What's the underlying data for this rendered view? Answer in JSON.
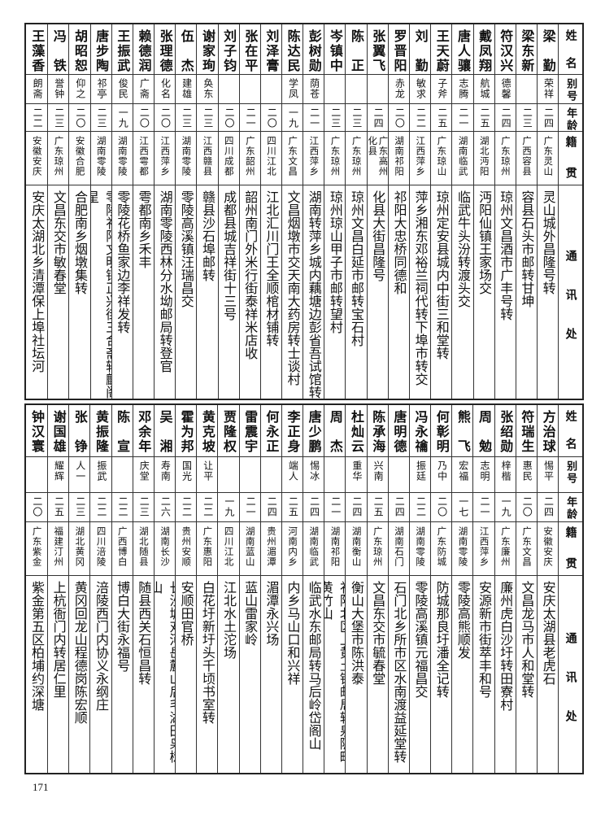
{
  "headers": {
    "name": "姓名",
    "alias": "别号",
    "age": "年龄",
    "origin": "籍贯",
    "address": "通讯处"
  },
  "top_table": [
    {
      "name": "梁勤",
      "alias": "荣祥",
      "age": "二四",
      "origin": "广东灵山",
      "address": "灵山城外昌隆号转"
    },
    {
      "name": "梁东新",
      "alias": "",
      "age": "二三",
      "origin": "广西容县",
      "address": "容县石头市邮转甘坤"
    },
    {
      "name": "符汉兴",
      "alias": "德馨",
      "age": "二四",
      "origin": "广东琼州",
      "address": "琼州文昌酒市广丰号转"
    },
    {
      "name": "戴凤翔",
      "alias": "航城",
      "age": "二五",
      "origin": "湖北沔阳",
      "address": "沔阳仙镇王家场交"
    },
    {
      "name": "唐人骧",
      "alias": "志腾",
      "age": "二一",
      "origin": "湖南临武",
      "address": "临武牛头汾转渡头交"
    },
    {
      "name": "王天蔚",
      "alias": "子斧",
      "age": "二五",
      "origin": "广东琼山",
      "address": "琼州定安县城内中街三和堂转"
    },
    {
      "name": "刘勤",
      "alias": "敏求",
      "age": "二二",
      "origin": "江西萍乡",
      "address": "萍乡湘东邓裕兰祠代转下埠市转交"
    },
    {
      "name": "罗晋阳",
      "alias": "赤龙",
      "age": "二〇",
      "origin": "湖南祁阳",
      "address": "祁阳大忠桥同德和"
    },
    {
      "name": "张翼飞",
      "alias": "",
      "age": "二四",
      "origin": "广东高州化县",
      "address": "化县大街昌隆号"
    },
    {
      "name": "陈正",
      "alias": "",
      "age": "二三",
      "origin": "广东琼州",
      "address": "琼州文昌白延市邮转宝石村"
    },
    {
      "name": "岑镇中",
      "alias": "",
      "age": "二三",
      "origin": "广东琼州",
      "address": "琼州琼山甲子市邮转望村"
    },
    {
      "name": "彭树勋",
      "alias": "荫苍",
      "age": "二一",
      "origin": "江西萍乡",
      "address": "湖南转萍乡城内藕塘边彭省吾试馆转"
    },
    {
      "name": "陈达民",
      "alias": "学凤",
      "age": "一九",
      "origin": "广东文昌",
      "address": "文昌烟墩市交天南大药房转士谈村"
    },
    {
      "name": "刘泽膏",
      "alias": "",
      "age": "二〇",
      "origin": "四川江北",
      "address": "江北汇川门王全顺棺材铺转"
    },
    {
      "name": "张在平",
      "alias": "",
      "age": "二一",
      "origin": "广东韶州",
      "address": "韶州南门外米行街泰祥米店收"
    },
    {
      "name": "刘子钧",
      "alias": "",
      "age": "二〇",
      "origin": "四川成都",
      "address": "成都县城吉祥街十三号"
    },
    {
      "name": "谢家珣",
      "alias": "奂东",
      "age": "二三",
      "origin": "江西赣县",
      "address": "赣县沙石埠邮转"
    },
    {
      "name": "伍杰",
      "alias": "建雄",
      "age": "二三",
      "origin": "湖南零陵",
      "address": "零陵高溪镇汪瑞昌交"
    },
    {
      "name": "张理德",
      "alias": "化名",
      "age": "二〇",
      "origin": "江西萍乡",
      "address": "湖南零陵西林分水坳邮局转登官"
    },
    {
      "name": "赖德润",
      "alias": "广斋",
      "age": "二〇",
      "origin": "江西雩都",
      "address": "雩都南乡禾丰"
    },
    {
      "name": "王振武",
      "alias": "俊民",
      "age": "一九",
      "origin": "湖南零陵",
      "address": "零陵花桥鱼家边李祥发转"
    },
    {
      "name": "唐步陶",
      "alias": "祁亭",
      "age": "二三",
      "origin": "湖南零陵",
      "address": "零陵祁阳文明铺正兴街三合斋转麟阁星"
    },
    {
      "name": "胡昭恕",
      "alias": "仰之",
      "age": "二〇",
      "origin": "安徽合肥",
      "address": "合肥南乡烟墩集转"
    },
    {
      "name": "冯铁",
      "alias": "誉钟",
      "age": "二三",
      "origin": "广东琼州",
      "address": "文昌东交市敏春堂"
    },
    {
      "name": "王藻香",
      "alias": "朗斋",
      "age": "二二",
      "origin": "安徽安庆",
      "address": "安庆太湖北乡清潭保上埠社坛河"
    }
  ],
  "bottom_table": [
    {
      "name": "方治球",
      "alias": "惕平",
      "age": "二四",
      "origin": "安徽安庆",
      "address": "安庆太湖县老虎石"
    },
    {
      "name": "符瑞生",
      "alias": "惠民",
      "age": "二〇",
      "origin": "广东文昌",
      "address": "文昌龙马市人和堂转"
    },
    {
      "name": "张绍勋",
      "alias": "梓楷",
      "age": "一九",
      "origin": "广东廉州",
      "address": "廉州虎白沙圩转田寮村"
    },
    {
      "name": "周勉",
      "alias": "志明",
      "age": "二一",
      "origin": "江西萍乡",
      "address": "安源新市街萃丰和号"
    },
    {
      "name": "熊飞",
      "alias": "宏福",
      "age": "一七",
      "origin": "湖南零陵",
      "address": "零陵高熊顺发"
    },
    {
      "name": "何彰明",
      "alias": "乃中",
      "age": "二〇",
      "origin": "广东防城",
      "address": "防城那良圩潘全记转"
    },
    {
      "name": "冯永禴",
      "alias": "振廷",
      "age": "二二",
      "origin": "湖南零陵",
      "address": "零陵高溪镇元福昌交"
    },
    {
      "name": "唐明德",
      "alias": "",
      "age": "二四",
      "origin": "湖南石门",
      "address": "石门北乡所市区水南渡益延堂转"
    },
    {
      "name": "陈承海",
      "alias": "兴南",
      "age": "二五",
      "origin": "广东琼州",
      "address": "文昌东交市毓春堂"
    },
    {
      "name": "杜灿云",
      "alias": "重华",
      "age": "二四",
      "origin": "湖南衡山",
      "address": "衡山大堡市陈洪泰"
    },
    {
      "name": "周杰",
      "alias": "",
      "age": "二一",
      "origin": "湖南祁阳",
      "address": "祁阳北区上黄土铺邮局转泉陂町黄竹山"
    },
    {
      "name": "唐少鹏",
      "alias": "惕冰",
      "age": "二四",
      "origin": "湖南临武",
      "address": "临武水东邮局转马后岭岱阁山"
    },
    {
      "name": "李正身",
      "alias": "端人",
      "age": "二五",
      "origin": "河南内乡",
      "address": "内乡马山口和兴祥"
    },
    {
      "name": "何永正",
      "alias": "",
      "age": "二四",
      "origin": "贵州湄潭",
      "address": "湄潭永兴场"
    },
    {
      "name": "雷震宇",
      "alias": "",
      "age": "二一",
      "origin": "湖南蓝山",
      "address": "蓝山雷家岭"
    },
    {
      "name": "贾隆权",
      "alias": "",
      "age": "一九",
      "origin": "四川江北",
      "address": "江北水土沱场"
    },
    {
      "name": "黄克坡",
      "alias": "让平",
      "age": "二二",
      "origin": "广东惠阳",
      "address": "白花圩新圩头千顷书室转"
    },
    {
      "name": "霍为邦",
      "alias": "国光",
      "age": "二二",
      "origin": "贵州安顺",
      "address": "安顺田官桥"
    },
    {
      "name": "吴湘",
      "alias": "寿南",
      "age": "二六",
      "origin": "湖南长沙",
      "address": "长沙城对河岳麓山后毛湖田枭树山"
    },
    {
      "name": "邓余年",
      "alias": "庆堂",
      "age": "二三",
      "origin": "湖北随县",
      "address": "随县西关石恒昌转"
    },
    {
      "name": "陈宣",
      "alias": "",
      "age": "二二",
      "origin": "广西博白",
      "address": "博白大街永福号"
    },
    {
      "name": "黄振隆",
      "alias": "振武",
      "age": "二二",
      "origin": "四川涪陵",
      "address": "涪陵西门内协义永纲庄"
    },
    {
      "name": "张铮",
      "alias": "人一",
      "age": "二三",
      "origin": "湖北黄冈",
      "address": "黄冈回龙山程德岗陈宏顺"
    },
    {
      "name": "谢国雄",
      "alias": "耀辉",
      "age": "二五",
      "origin": "福建汀州",
      "address": "上杭衙门内转居仁里"
    },
    {
      "name": "钟汉寰",
      "alias": "",
      "age": "二〇",
      "origin": "广东紫金",
      "address": "紫金第五区柏埔约深塘"
    }
  ],
  "page_number": "171"
}
